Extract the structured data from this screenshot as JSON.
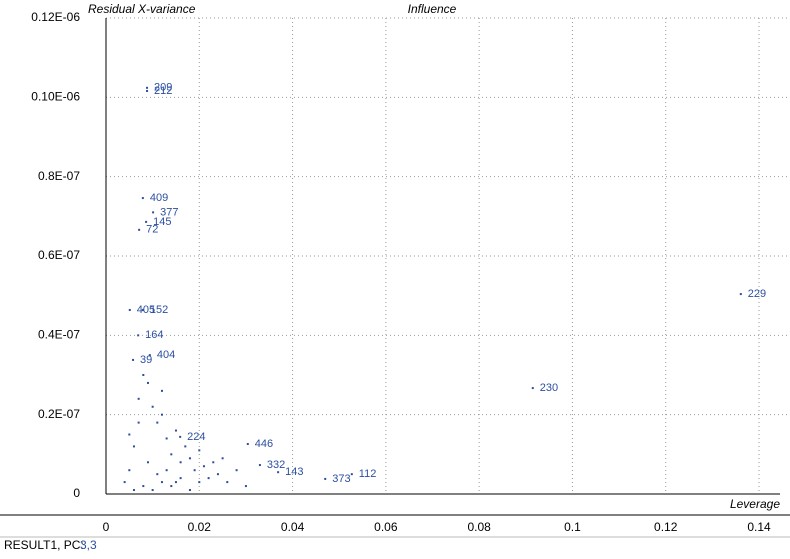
{
  "chart_data": {
    "type": "scatter",
    "title": "Influence",
    "y_label": "Residual X-variance",
    "x_label": "Leverage",
    "xlim": [
      0,
      0.14
    ],
    "ylim": [
      0,
      1.2e-07
    ],
    "xticks": [
      0,
      0.02,
      0.04,
      0.06,
      0.08,
      0.1,
      0.12,
      0.14
    ],
    "yticks": [
      0,
      {
        "value": 2e-08,
        "label": "0.2E-07"
      },
      {
        "value": 4e-08,
        "label": "0.4E-07"
      },
      {
        "value": 6e-08,
        "label": "0.6E-07"
      },
      {
        "value": 8e-08,
        "label": "0.8E-07"
      },
      {
        "value": 1e-07,
        "label": "0.10E-06"
      },
      {
        "value": 1.2e-07,
        "label": "0.12E-06"
      }
    ],
    "grid": true,
    "series": [
      {
        "color": "#2e4d9c",
        "x": [
          0.0088,
          0.0088,
          0.0079,
          0.0101,
          0.0086,
          0.0071,
          0.1361,
          0.0915,
          0.0051,
          0.0079,
          0.0069,
          0.0094,
          0.0058,
          0.0304,
          0.033,
          0.0369,
          0.047,
          0.0527,
          0.0159
        ],
        "values": [
          1.024e-07,
          1.016e-07,
          7.46e-08,
          7.1e-08,
          6.86e-08,
          6.66e-08,
          5.04e-08,
          2.67e-08,
          4.64e-08,
          4.64e-08,
          4e-08,
          3.5e-08,
          3.38e-08,
          1.26e-08,
          7.3e-09,
          5.5e-09,
          3.8e-09,
          5e-09,
          1.44e-08
        ],
        "labels": [
          "209",
          "212",
          "409",
          "377",
          "145",
          "72",
          "229",
          "230",
          "405",
          "152",
          "164",
          "404",
          "39",
          "446",
          "332",
          "143",
          "373",
          "112",
          "224"
        ]
      },
      {
        "color": "#2e4d9c",
        "x": [
          0.004,
          0.005,
          0.006,
          0.007,
          0.008,
          0.009,
          0.01,
          0.011,
          0.012,
          0.013,
          0.014,
          0.015,
          0.016,
          0.017,
          0.018,
          0.019,
          0.02,
          0.021,
          0.022,
          0.023,
          0.024,
          0.025,
          0.026,
          0.028,
          0.03,
          0.006,
          0.008,
          0.01,
          0.012,
          0.014,
          0.016,
          0.018,
          0.02,
          0.007,
          0.009,
          0.011,
          0.013,
          0.015,
          0.005,
          0.012
        ],
        "values": [
          3e-09,
          6e-09,
          1.2e-08,
          2.4e-08,
          3e-08,
          2.8e-08,
          2.2e-08,
          1.8e-08,
          2.6e-08,
          1.4e-08,
          1e-08,
          1.6e-08,
          8e-09,
          1.2e-08,
          9e-09,
          6e-09,
          1.1e-08,
          7e-09,
          4e-09,
          8e-09,
          5e-09,
          9e-09,
          3e-09,
          6e-09,
          2e-09,
          1e-09,
          2e-09,
          1e-09,
          3e-09,
          2e-09,
          4e-09,
          1e-09,
          3e-09,
          1.8e-08,
          8e-09,
          5e-09,
          6e-09,
          3e-09,
          1.5e-08,
          2e-08
        ]
      }
    ]
  },
  "status": {
    "label": "RESULT1, PC:",
    "value": "3,3"
  }
}
